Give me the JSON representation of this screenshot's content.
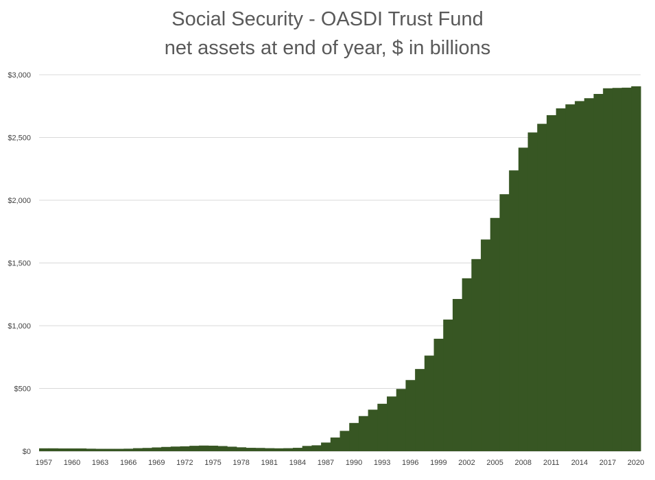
{
  "chart_data": {
    "type": "bar",
    "title": "Social Security - OASDI Trust Fund",
    "subtitle": "net assets at end of year, $ in billions",
    "xlabel": "",
    "ylabel": "",
    "ylim": [
      0,
      3000
    ],
    "y_ticks": [
      "$0",
      "$500",
      "$1,000",
      "$1,500",
      "$2,000",
      "$2,500",
      "$3,000"
    ],
    "y_tick_values": [
      0,
      500,
      1000,
      1500,
      2000,
      2500,
      3000
    ],
    "x_tick_labels": [
      "1957",
      "1960",
      "1963",
      "1966",
      "1969",
      "1972",
      "1975",
      "1978",
      "1981",
      "1984",
      "1987",
      "1990",
      "1993",
      "1996",
      "1999",
      "2002",
      "2005",
      "2008",
      "2011",
      "2014",
      "2017",
      "2020"
    ],
    "grid": true,
    "bar_color": "#375623",
    "categories": [
      1957,
      1958,
      1959,
      1960,
      1961,
      1962,
      1963,
      1964,
      1965,
      1966,
      1967,
      1968,
      1969,
      1970,
      1971,
      1972,
      1973,
      1974,
      1975,
      1976,
      1977,
      1978,
      1979,
      1980,
      1981,
      1982,
      1983,
      1984,
      1985,
      1986,
      1987,
      1988,
      1989,
      1990,
      1991,
      1992,
      1993,
      1994,
      1995,
      1996,
      1997,
      1998,
      1999,
      2000,
      2001,
      2002,
      2003,
      2004,
      2005,
      2006,
      2007,
      2008,
      2009,
      2010,
      2011,
      2012,
      2013,
      2014,
      2015,
      2016,
      2017,
      2018,
      2019,
      2020
    ],
    "values": [
      23,
      23,
      22,
      22,
      22,
      20,
      19,
      19,
      19,
      20,
      24,
      26,
      30,
      34,
      37,
      39,
      43,
      45,
      44,
      41,
      36,
      31,
      27,
      26,
      24,
      23,
      24,
      27,
      42,
      47,
      69,
      109,
      162,
      225,
      280,
      331,
      378,
      436,
      496,
      567,
      655,
      762,
      896,
      1049,
      1213,
      1378,
      1531,
      1687,
      1859,
      2048,
      2238,
      2419,
      2540,
      2609,
      2678,
      2732,
      2764,
      2790,
      2813,
      2847,
      2892,
      2895,
      2897,
      2908
    ]
  }
}
